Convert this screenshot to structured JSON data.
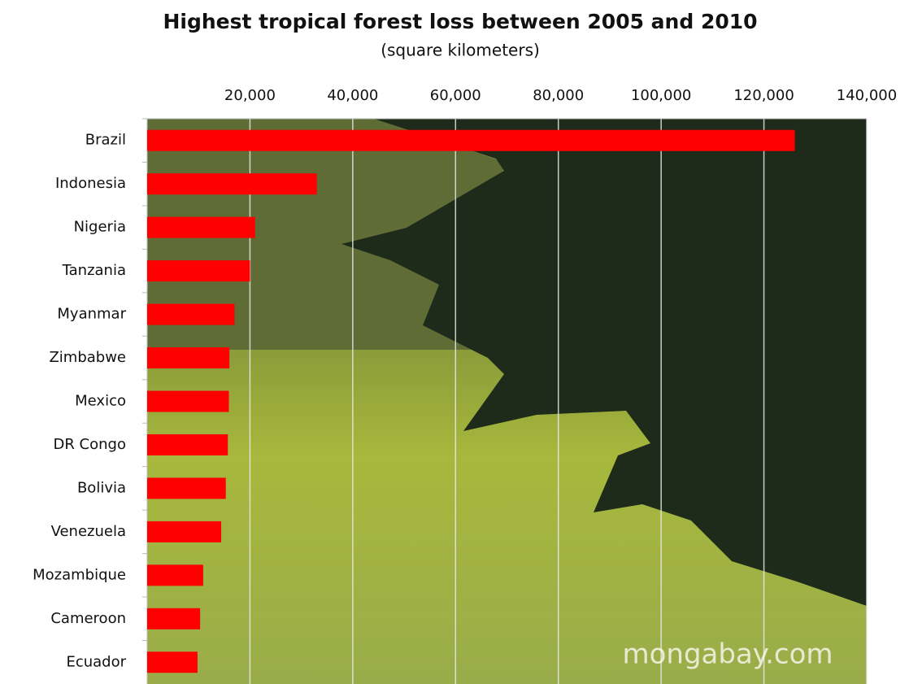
{
  "chart_data": {
    "type": "bar",
    "orientation": "horizontal",
    "title": "Highest tropical forest loss between 2005 and 2010",
    "subtitle": "(square kilometers)",
    "watermark": "mongabay.com",
    "categories": [
      "Brazil",
      "Indonesia",
      "Nigeria",
      "Tanzania",
      "Myanmar",
      "Zimbabwe",
      "Mexico",
      "DR Congo",
      "Bolivia",
      "Venezuela",
      "Mozambique",
      "Cameroon",
      "Ecuador"
    ],
    "values": [
      126000,
      33000,
      21000,
      20000,
      17000,
      16000,
      15900,
      15700,
      15300,
      14400,
      10900,
      10300,
      9800
    ],
    "color": "#ff0000",
    "xlim": [
      0,
      140000
    ],
    "xticks": [
      {
        "value": 20000,
        "label": "20,000"
      },
      {
        "value": 40000,
        "label": "40,000"
      },
      {
        "value": 60000,
        "label": "60,000"
      },
      {
        "value": 80000,
        "label": "80,000"
      },
      {
        "value": 100000,
        "label": "100,000"
      },
      {
        "value": 120000,
        "label": "120,000"
      },
      {
        "value": 140000,
        "label": "140,000"
      }
    ],
    "grid": true
  }
}
